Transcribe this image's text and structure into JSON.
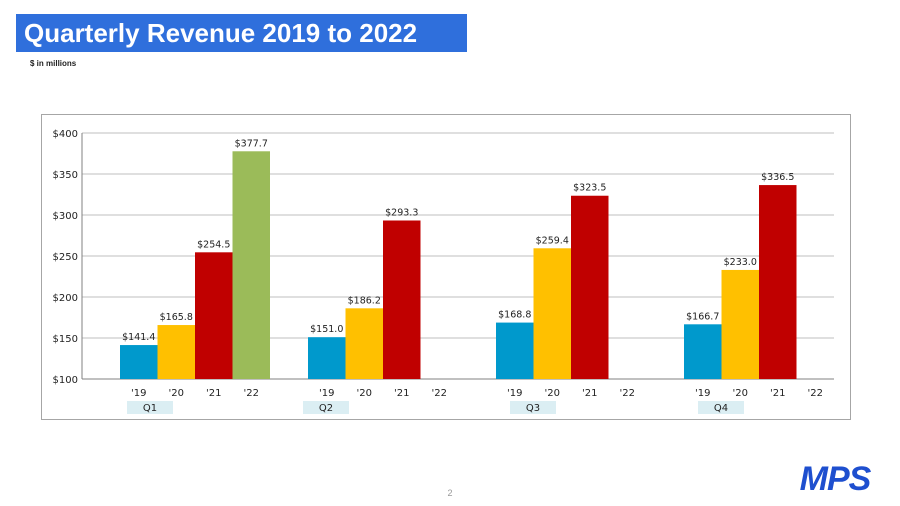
{
  "slide": {
    "title": "Quarterly Revenue 2019 to 2022",
    "subtitle": "$ in millions",
    "page_number": "2",
    "logo_text": "MPS",
    "colors": {
      "title_bg": "#2f6fdc",
      "y2019": "#0099cc",
      "y2020": "#ffc000",
      "y2021": "#c00000",
      "y2022": "#9bbb59",
      "quarter_label_bg": "#dbeef3",
      "logo": "#1e4fcf"
    }
  },
  "chart_data": {
    "type": "bar",
    "title": "",
    "ylim": [
      100,
      400
    ],
    "yticks": [
      100,
      150,
      200,
      250,
      300,
      350,
      400
    ],
    "ytick_labels": [
      "$100",
      "$150",
      "$200",
      "$250",
      "$300",
      "$350",
      "$400"
    ],
    "grid": true,
    "legend": "none",
    "groups": [
      "Q1",
      "Q2",
      "Q3",
      "Q4"
    ],
    "bar_labels": [
      "'19",
      "'20",
      "'21",
      "'22"
    ],
    "groups_data": [
      {
        "quarter": "Q1",
        "values": [
          141.4,
          165.8,
          254.5,
          377.7
        ],
        "labels": [
          "$141.4",
          "$165.8",
          "$254.5",
          "$377.7"
        ]
      },
      {
        "quarter": "Q2",
        "values": [
          151.0,
          186.2,
          293.3,
          null
        ],
        "labels": [
          "$151.0",
          "$186.2",
          "$293.3",
          ""
        ]
      },
      {
        "quarter": "Q3",
        "values": [
          168.8,
          259.4,
          323.5,
          null
        ],
        "labels": [
          "$168.8",
          "$259.4",
          "$323.5",
          ""
        ]
      },
      {
        "quarter": "Q4",
        "values": [
          166.7,
          233.0,
          336.5,
          null
        ],
        "labels": [
          "$166.7",
          "$233.0",
          "$336.5",
          ""
        ]
      }
    ]
  }
}
